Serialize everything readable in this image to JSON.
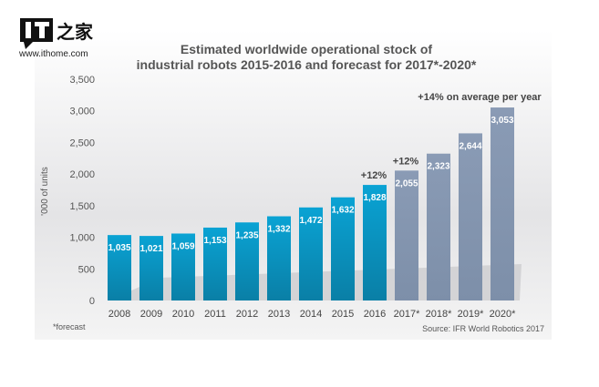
{
  "logo": {
    "text": "IT之家",
    "url_text": "www.ithome.com"
  },
  "chart_data": {
    "type": "bar",
    "title": "Estimated worldwide operational stock of industrial robots 2015-2016 and forecast for 2017*-2020*",
    "title_lines": [
      "Estimated worldwide operational stock of",
      "industrial robots 2015-2016 and forecast for 2017*-2020*"
    ],
    "ylabel": "'000 of units",
    "xlabel": "",
    "ylim": [
      0,
      3500
    ],
    "yticks": [
      "0",
      "500",
      "1,000",
      "1,500",
      "2,000",
      "2,500",
      "3,000",
      "3,500"
    ],
    "categories": [
      "2008",
      "2009",
      "2010",
      "2011",
      "2012",
      "2013",
      "2014",
      "2015",
      "2016",
      "2017*",
      "2018*",
      "2019*",
      "2020*"
    ],
    "values": [
      1035,
      1021,
      1059,
      1153,
      1235,
      1332,
      1472,
      1632,
      1828,
      2055,
      2323,
      2644,
      3053
    ],
    "value_labels": [
      "1,035",
      "1,021",
      "1,059",
      "1,153",
      "1,235",
      "1,332",
      "1,472",
      "1,632",
      "1,828",
      "2,055",
      "2,323",
      "2,644",
      "3,053"
    ],
    "forecast_from": "2017*",
    "colors": {
      "actual": "#0a9ac9",
      "actual_dark": "#0a7fa8",
      "forecast": "#8496b0"
    },
    "annotations": [
      {
        "text": "+12%",
        "category": "2016"
      },
      {
        "text": "+12%",
        "category": "2017*"
      },
      {
        "text": "+14% on average per year",
        "category": "2019*"
      }
    ],
    "footnote": "*forecast",
    "source": "Source: IFR World Robotics 2017",
    "grid": false
  }
}
